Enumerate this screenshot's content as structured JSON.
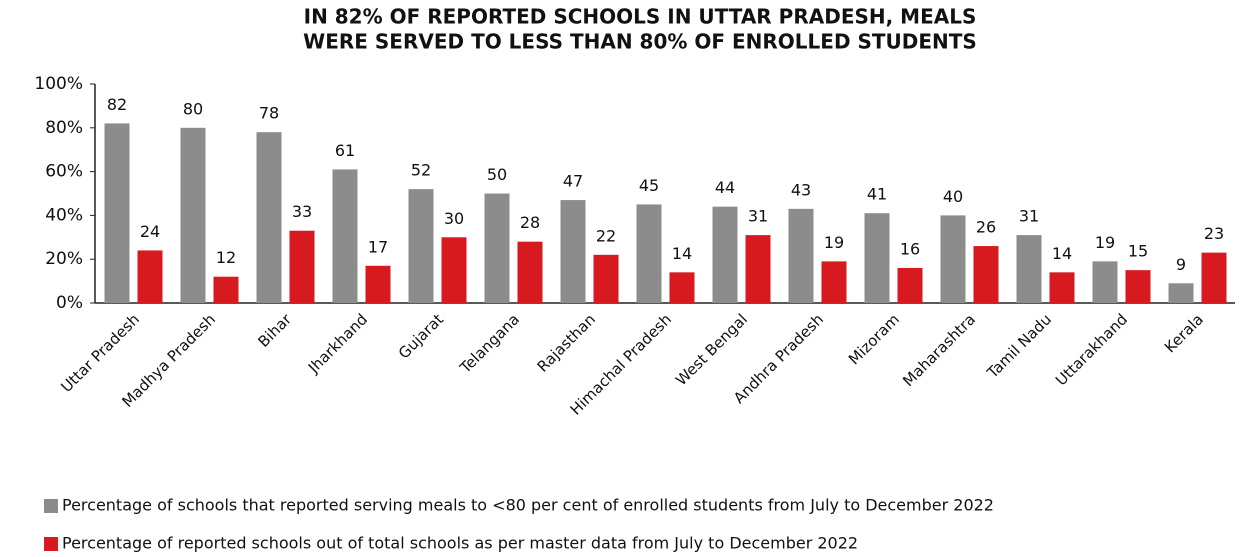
{
  "chart_data": {
    "type": "bar",
    "title": [
      "IN 82% OF REPORTED SCHOOLS IN UTTAR PRADESH, MEALS",
      "WERE SERVED TO LESS THAN 80% OF ENROLLED STUDENTS"
    ],
    "categories": [
      "Uttar Pradesh",
      "Madhya Pradesh",
      "Bihar",
      "Jharkhand",
      "Gujarat",
      "Telangana",
      "Rajasthan",
      "Himachal Pradesh",
      "West Bengal",
      "Andhra Pradesh",
      "Mizoram",
      "Maharashtra",
      "Tamil Nadu",
      "Uttarakhand",
      "Kerala"
    ],
    "series": [
      {
        "name": "Percentage of schools that reported serving meals to <80 per cent of enrolled students from July to December 2022",
        "color": "#8c8c8c",
        "values": [
          82,
          80,
          78,
          61,
          52,
          50,
          47,
          45,
          44,
          43,
          41,
          40,
          31,
          19,
          9
        ]
      },
      {
        "name": "Percentage of reported schools out of total schools as per master data from July to December 2022",
        "color": "#d71920",
        "values": [
          24,
          12,
          33,
          17,
          30,
          28,
          22,
          14,
          31,
          19,
          16,
          26,
          14,
          15,
          23
        ]
      }
    ],
    "ylim": [
      0,
      100
    ],
    "yticks": [
      {
        "value": 0,
        "label": "0%"
      },
      {
        "value": 20,
        "label": "20%"
      },
      {
        "value": 40,
        "label": "40%"
      },
      {
        "value": 60,
        "label": "60%"
      },
      {
        "value": 80,
        "label": "80%"
      },
      {
        "value": 100,
        "label": "100%"
      }
    ],
    "grid": false,
    "legend": "bottom"
  }
}
